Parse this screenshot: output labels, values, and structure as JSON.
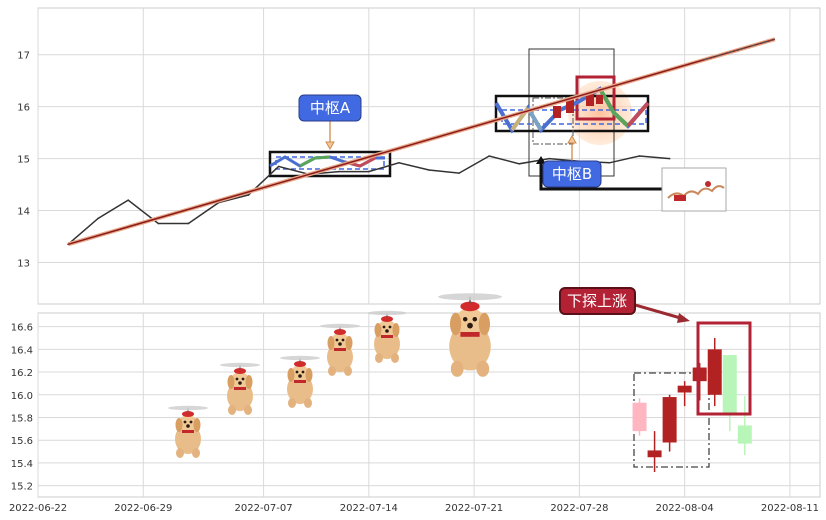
{
  "colors": {
    "background": "#ffffff",
    "grid": "#d9d9d9",
    "frame": "#cccccc",
    "price_line": "#333333",
    "trend_line": "#8b1a1a",
    "zone_blue": "#4169e1",
    "annotation_blue": "#4169e1",
    "annotation_red": "#b22234",
    "candle_up_dark": "#b22222",
    "candle_up_light": "#ffb6c1",
    "candle_green_light": "#b8f5b8"
  },
  "decorations": [
    "flying-dogs-with-helicopter-hats",
    "reindeer-sleigh-inset"
  ],
  "chart_data": [
    {
      "type": "line",
      "title": "",
      "xlabel": "",
      "ylabel": "",
      "x_range": [
        "2022-06-22",
        "2022-08-13"
      ],
      "ylim": [
        12.2,
        17.9
      ],
      "y_ticks": [
        13,
        14,
        15,
        16,
        17
      ],
      "grid": true,
      "series": [
        {
          "style": "price",
          "x": [
            "2022-06-24",
            "2022-06-26",
            "2022-06-28",
            "2022-06-30",
            "2022-07-02",
            "2022-07-04",
            "2022-07-06",
            "2022-07-08",
            "2022-07-10",
            "2022-07-12",
            "2022-07-14",
            "2022-07-16",
            "2022-07-18",
            "2022-07-20",
            "2022-07-22",
            "2022-07-24",
            "2022-07-26",
            "2022-07-28",
            "2022-07-30",
            "2022-08-01",
            "2022-08-03"
          ],
          "y": [
            13.35,
            13.85,
            14.2,
            13.75,
            13.75,
            14.15,
            14.3,
            14.85,
            14.7,
            14.75,
            14.75,
            14.92,
            14.78,
            14.72,
            15.05,
            14.9,
            15.0,
            14.95,
            14.92,
            15.05,
            15.0
          ]
        },
        {
          "style": "trend",
          "x": [
            "2022-06-24",
            "2022-08-10"
          ],
          "y": [
            13.35,
            17.3
          ]
        }
      ],
      "zones": [
        {
          "label": "中枢A",
          "x0": "2022-07-07",
          "x1": "2022-07-15",
          "y0": 14.68,
          "y1": 15.15
        },
        {
          "label": "中枢B",
          "x0": "2022-07-22",
          "x1": "2022-08-03",
          "y0": 15.52,
          "y1": 16.25
        }
      ],
      "annotations": [
        {
          "text": "中枢A",
          "arrow_to": "2022-07-11"
        },
        {
          "text": "中枢B",
          "arrow_to": "2022-07-28"
        }
      ]
    },
    {
      "type": "candlestick",
      "title": "",
      "xlabel": "",
      "ylabel": "",
      "x_range": [
        "2022-06-22",
        "2022-08-13"
      ],
      "ylim": [
        15.1,
        16.72
      ],
      "y_ticks": [
        15.2,
        15.4,
        15.6,
        15.8,
        16.0,
        16.2,
        16.4,
        16.6
      ],
      "x_ticks": [
        "2022-06-22",
        "2022-06-29",
        "2022-07-07",
        "2022-07-14",
        "2022-07-21",
        "2022-07-28",
        "2022-08-04",
        "2022-08-11"
      ],
      "grid": true,
      "candles": [
        {
          "x": "2022-08-01",
          "open": 15.68,
          "high": 15.97,
          "low": 15.64,
          "close": 15.93,
          "tone": "light-up"
        },
        {
          "x": "2022-08-02",
          "open": 15.45,
          "high": 15.68,
          "low": 15.32,
          "close": 15.51,
          "tone": "dark-up"
        },
        {
          "x": "2022-08-03",
          "open": 15.58,
          "high": 16.0,
          "low": 15.5,
          "close": 15.98,
          "tone": "dark-up"
        },
        {
          "x": "2022-08-04",
          "open": 16.02,
          "high": 16.12,
          "low": 15.9,
          "close": 16.08,
          "tone": "dark-up"
        },
        {
          "x": "2022-08-05",
          "open": 16.12,
          "high": 16.28,
          "low": 15.95,
          "close": 16.24,
          "tone": "dark-up"
        },
        {
          "x": "2022-08-06",
          "open": 16.0,
          "high": 16.5,
          "low": 15.9,
          "close": 16.4,
          "tone": "dark-up"
        },
        {
          "x": "2022-08-07",
          "open": 16.35,
          "high": 16.35,
          "low": 15.68,
          "close": 15.82,
          "tone": "light-down"
        },
        {
          "x": "2022-08-08",
          "open": 15.73,
          "high": 15.99,
          "low": 15.47,
          "close": 15.57,
          "tone": "light-down"
        }
      ],
      "annotations": [
        {
          "text": "下探上涨",
          "arrow_to": "2022-08-04"
        }
      ]
    }
  ]
}
